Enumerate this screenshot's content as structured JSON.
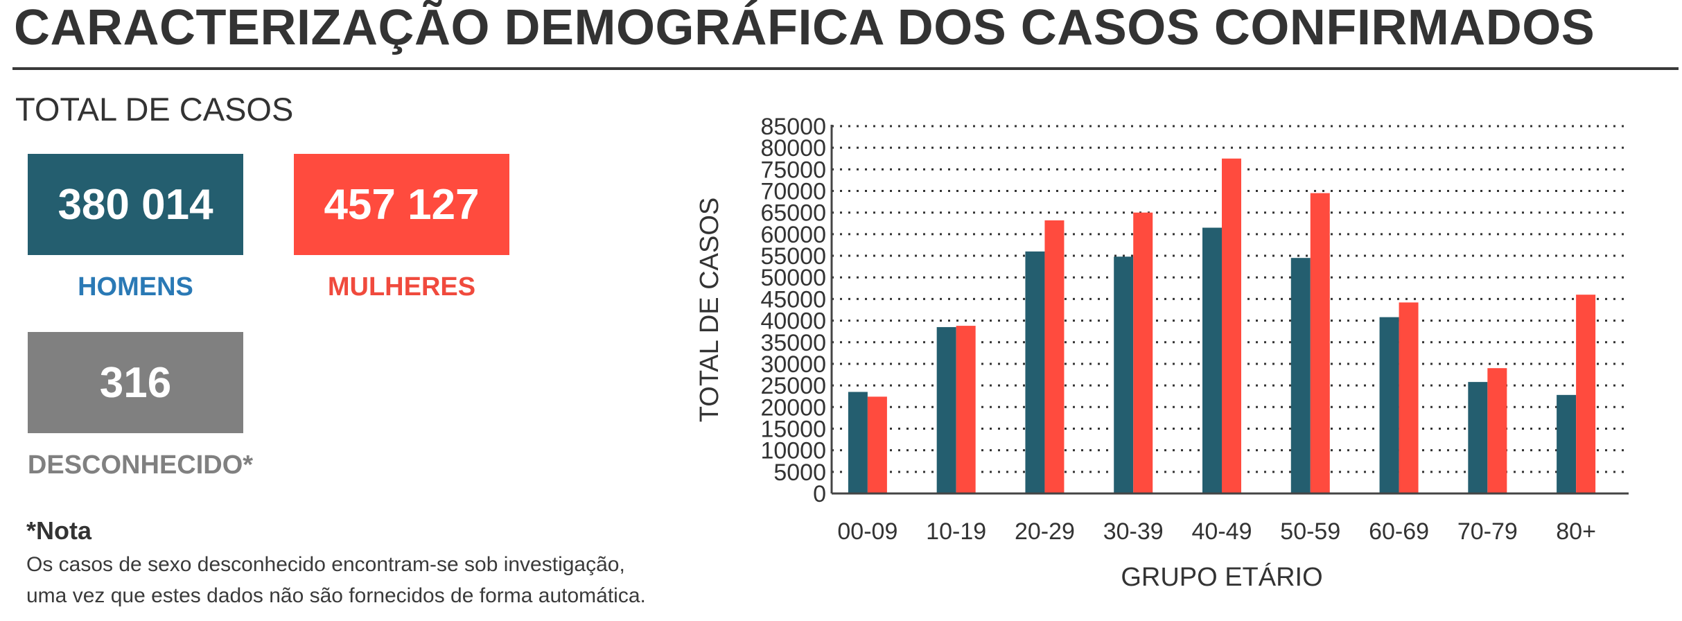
{
  "page": {
    "title": "CARACTERIZAÇÃO DEMOGRÁFICA DOS CASOS CONFIRMADOS"
  },
  "totals": {
    "heading": "TOTAL DE CASOS",
    "men": {
      "value": "380 014",
      "label": "HOMENS"
    },
    "women": {
      "value": "457 127",
      "label": "MULHERES"
    },
    "unknown": {
      "value": "316",
      "label": "DESCONHECIDO*"
    }
  },
  "note": {
    "title": "*Nota",
    "line1": "Os casos de sexo desconhecido encontram-se sob investigação,",
    "line2": "uma vez que estes dados não são fornecidos de forma automática."
  },
  "colors": {
    "men": "#245e6f",
    "women": "#ff4b3e",
    "unknown": "#808080",
    "men_label": "#2a79b5",
    "women_label": "#f04a3d"
  },
  "chart_data": {
    "type": "bar",
    "title": "",
    "xlabel": "GRUPO ETÁRIO",
    "ylabel": "TOTAL DE CASOS",
    "categories": [
      "00-09",
      "10-19",
      "20-29",
      "30-39",
      "40-49",
      "50-59",
      "60-69",
      "70-79",
      "80+"
    ],
    "series": [
      {
        "values": [
          23500,
          38500,
          56000,
          54800,
          61500,
          54500,
          40800,
          25800,
          22800
        ],
        "color": "#245e6f"
      },
      {
        "values": [
          22400,
          38800,
          63200,
          65000,
          77500,
          69500,
          44200,
          29000,
          46000
        ],
        "color": "#ff4b3e"
      }
    ],
    "ylim": [
      0,
      85000
    ],
    "yticks": [
      0,
      5000,
      10000,
      15000,
      20000,
      25000,
      30000,
      35000,
      40000,
      45000,
      50000,
      55000,
      60000,
      65000,
      70000,
      75000,
      80000,
      85000
    ],
    "grid": true,
    "grid_style": "dotted",
    "legend": "none"
  }
}
